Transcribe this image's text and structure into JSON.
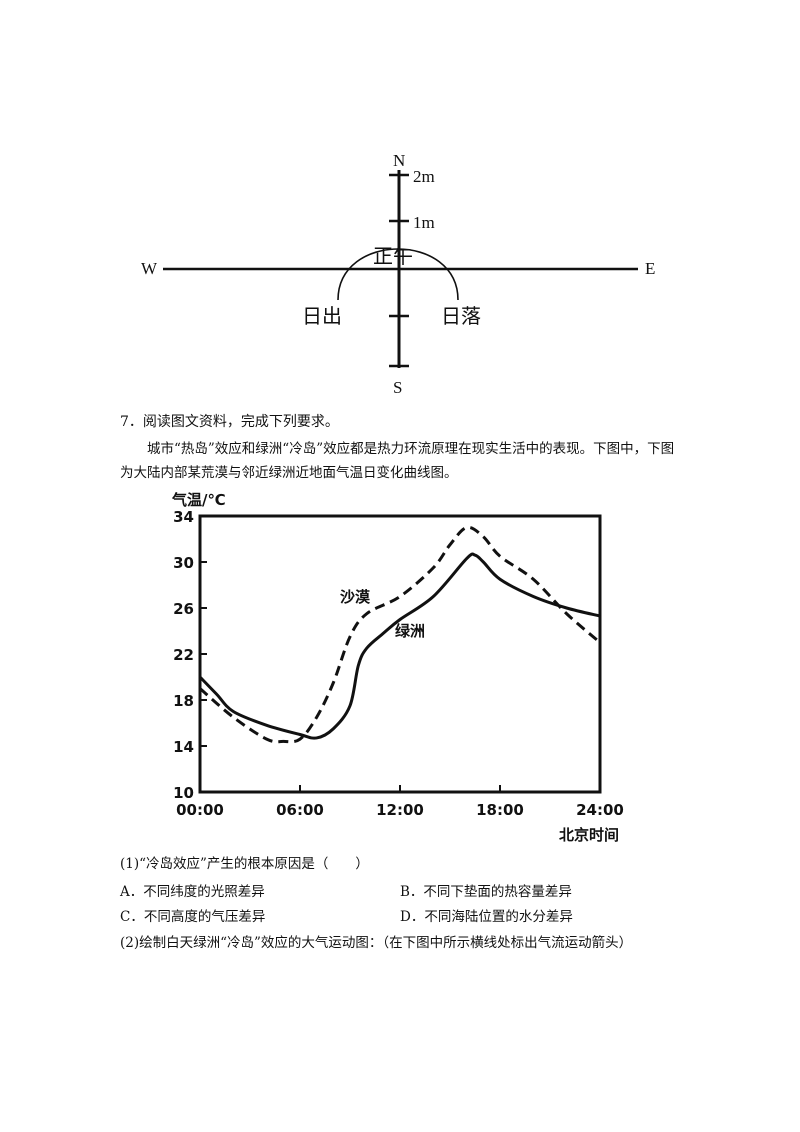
{
  "compass": {
    "n": "N",
    "s": "S",
    "w": "W",
    "e": "E",
    "tick_2m": "2m",
    "tick_1m": "1m",
    "noon": "正午",
    "sunrise": "日出",
    "sunset": "日落"
  },
  "question": {
    "number_title": "7．阅读图文资料，完成下列要求。",
    "paragraph": "城市“热岛”效应和绿洲“冷岛”效应都是热力环流原理在现实生活中的表现。下图中，下图为大陆内部某荒漠与邻近绿洲近地面气温日变化曲线图。",
    "sub1": "(1)“冷岛效应”产生的根本原因是（　　）",
    "options": {
      "a": "A．不同纬度的光照差异",
      "b": "B．不同下垫面的热容量差异",
      "c": "C．不同高度的气压差异",
      "d": "D．不同海陆位置的水分差异"
    },
    "sub2": "(2)绘制白天绿洲“冷岛”效应的大气运动图：（在下图中所示横线处标出气流运动箭头）"
  },
  "chart_data": {
    "type": "line",
    "ylabel": "气温/℃",
    "xlabel": "北京时间",
    "x_ticks": [
      "00:00",
      "06:00",
      "12:00",
      "18:00",
      "24:00"
    ],
    "y_ticks": [
      "10",
      "14",
      "18",
      "22",
      "26",
      "30",
      "34"
    ],
    "xlim": [
      0,
      24
    ],
    "ylim": [
      10,
      34
    ],
    "series": [
      {
        "name": "沙漠",
        "style": "dashed",
        "points": [
          [
            0,
            19
          ],
          [
            2,
            16.5
          ],
          [
            4,
            14.6
          ],
          [
            5,
            14.4
          ],
          [
            6,
            14.6
          ],
          [
            7,
            16.5
          ],
          [
            8,
            19.5
          ],
          [
            9,
            23.5
          ],
          [
            10,
            25.5
          ],
          [
            12,
            27
          ],
          [
            14,
            29.5
          ],
          [
            15,
            31.5
          ],
          [
            16,
            33
          ],
          [
            17,
            32.2
          ],
          [
            18,
            30.5
          ],
          [
            20,
            28.5
          ],
          [
            22,
            25.5
          ],
          [
            24,
            23
          ]
        ]
      },
      {
        "name": "绿洲",
        "style": "solid",
        "points": [
          [
            0,
            20
          ],
          [
            1,
            18.5
          ],
          [
            2,
            17
          ],
          [
            4,
            15.8
          ],
          [
            6,
            15
          ],
          [
            7,
            14.7
          ],
          [
            8,
            15.5
          ],
          [
            9,
            17.5
          ],
          [
            9.5,
            21
          ],
          [
            10,
            22.5
          ],
          [
            11,
            23.8
          ],
          [
            12,
            25
          ],
          [
            14,
            27
          ],
          [
            16,
            30.3
          ],
          [
            16.5,
            30.6
          ],
          [
            17,
            30
          ],
          [
            18,
            28.5
          ],
          [
            20,
            27
          ],
          [
            22,
            26
          ],
          [
            24,
            25.3
          ]
        ]
      }
    ],
    "grid": false
  }
}
